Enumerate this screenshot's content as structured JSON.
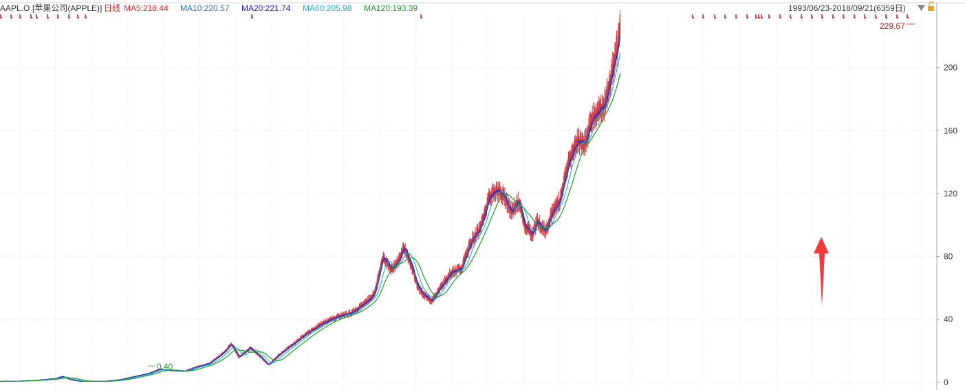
{
  "header": {
    "symbol": "AAPL.O",
    "name": "[苹果公司(APPLE)]",
    "period": "日线",
    "indicators": [
      {
        "label": "MA5:218.44",
        "color": "#e0242b"
      },
      {
        "label": "MA10:220.57",
        "color": "#2f6fb5"
      },
      {
        "label": "MA20:221.74",
        "color": "#1a1ad0"
      },
      {
        "label": "MA60:205.98",
        "color": "#19b5c9"
      },
      {
        "label": "MA120:193.39",
        "color": "#1f9a2a"
      }
    ],
    "date_range": "1993/06/23-2018/09/21(6359日)",
    "dropdown_icon": "triangle-down-icon",
    "lock_icon": "unlock-icon"
  },
  "chart_data": {
    "type": "line",
    "chart_style": "candlestick-with-moving-averages",
    "x_start": "1993/06/23",
    "x_end": "2018/09/21",
    "trading_days": 6359,
    "y_ticks": [
      0,
      40,
      80,
      120,
      160,
      200
    ],
    "ylim": [
      -4,
      233
    ],
    "grid": true,
    "annotations": [
      {
        "text": "229.67",
        "kind": "max",
        "color": "#cc2222"
      },
      {
        "text": "0.40",
        "kind": "min",
        "color": "#2a9a2a"
      }
    ],
    "arrow": {
      "color": "#ef3b3b",
      "direction": "up"
    },
    "colors": {
      "price": "#c8202a",
      "ma5": "#e0242b",
      "ma10": "#2f6fb5",
      "ma20": "#1a1ad0",
      "ma60": "#19b5c9",
      "ma120": "#1f9a2a"
    },
    "price_points": [
      [
        0,
        0.6
      ],
      [
        120,
        0.8
      ],
      [
        260,
        1.4
      ],
      [
        380,
        2.5
      ],
      [
        420,
        3.8
      ],
      [
        480,
        1.6
      ],
      [
        540,
        0.7
      ],
      [
        700,
        0.6
      ],
      [
        820,
        1.8
      ],
      [
        900,
        3.5
      ],
      [
        1000,
        5.5
      ],
      [
        1090,
        8.5
      ],
      [
        1150,
        7.5
      ],
      [
        1250,
        7.0
      ],
      [
        1320,
        9.5
      ],
      [
        1420,
        12.0
      ],
      [
        1520,
        19.0
      ],
      [
        1570,
        24.5
      ],
      [
        1620,
        16.0
      ],
      [
        1700,
        22.0
      ],
      [
        1760,
        17.0
      ],
      [
        1820,
        11.0
      ],
      [
        1900,
        18.0
      ],
      [
        2000,
        25.0
      ],
      [
        2080,
        31.0
      ],
      [
        2200,
        38.0
      ],
      [
        2300,
        42.0
      ],
      [
        2380,
        44.0
      ],
      [
        2460,
        49.0
      ],
      [
        2540,
        56.0
      ],
      [
        2600,
        80.0
      ],
      [
        2650,
        72.0
      ],
      [
        2700,
        76.0
      ],
      [
        2740,
        86.0
      ],
      [
        2790,
        75.0
      ],
      [
        2830,
        62.0
      ],
      [
        2880,
        55.0
      ],
      [
        2930,
        52.0
      ],
      [
        2990,
        60.0
      ],
      [
        3060,
        70.0
      ],
      [
        3130,
        72.0
      ],
      [
        3200,
        90.0
      ],
      [
        3260,
        98.0
      ],
      [
        3320,
        118.0
      ],
      [
        3370,
        122.0
      ],
      [
        3420,
        119.0
      ],
      [
        3470,
        108.0
      ],
      [
        3520,
        115.0
      ],
      [
        3560,
        100.0
      ],
      [
        3610,
        94.0
      ],
      [
        3650,
        103.0
      ],
      [
        3700,
        96.0
      ],
      [
        3750,
        108.0
      ],
      [
        3800,
        116.0
      ],
      [
        3860,
        140.0
      ],
      [
        3920,
        154.0
      ],
      [
        3970,
        152.0
      ],
      [
        4020,
        168.0
      ],
      [
        4060,
        172.0
      ],
      [
        4100,
        176.0
      ],
      [
        4140,
        192.0
      ],
      [
        4180,
        208.0
      ],
      [
        4210,
        226.0
      ]
    ]
  }
}
